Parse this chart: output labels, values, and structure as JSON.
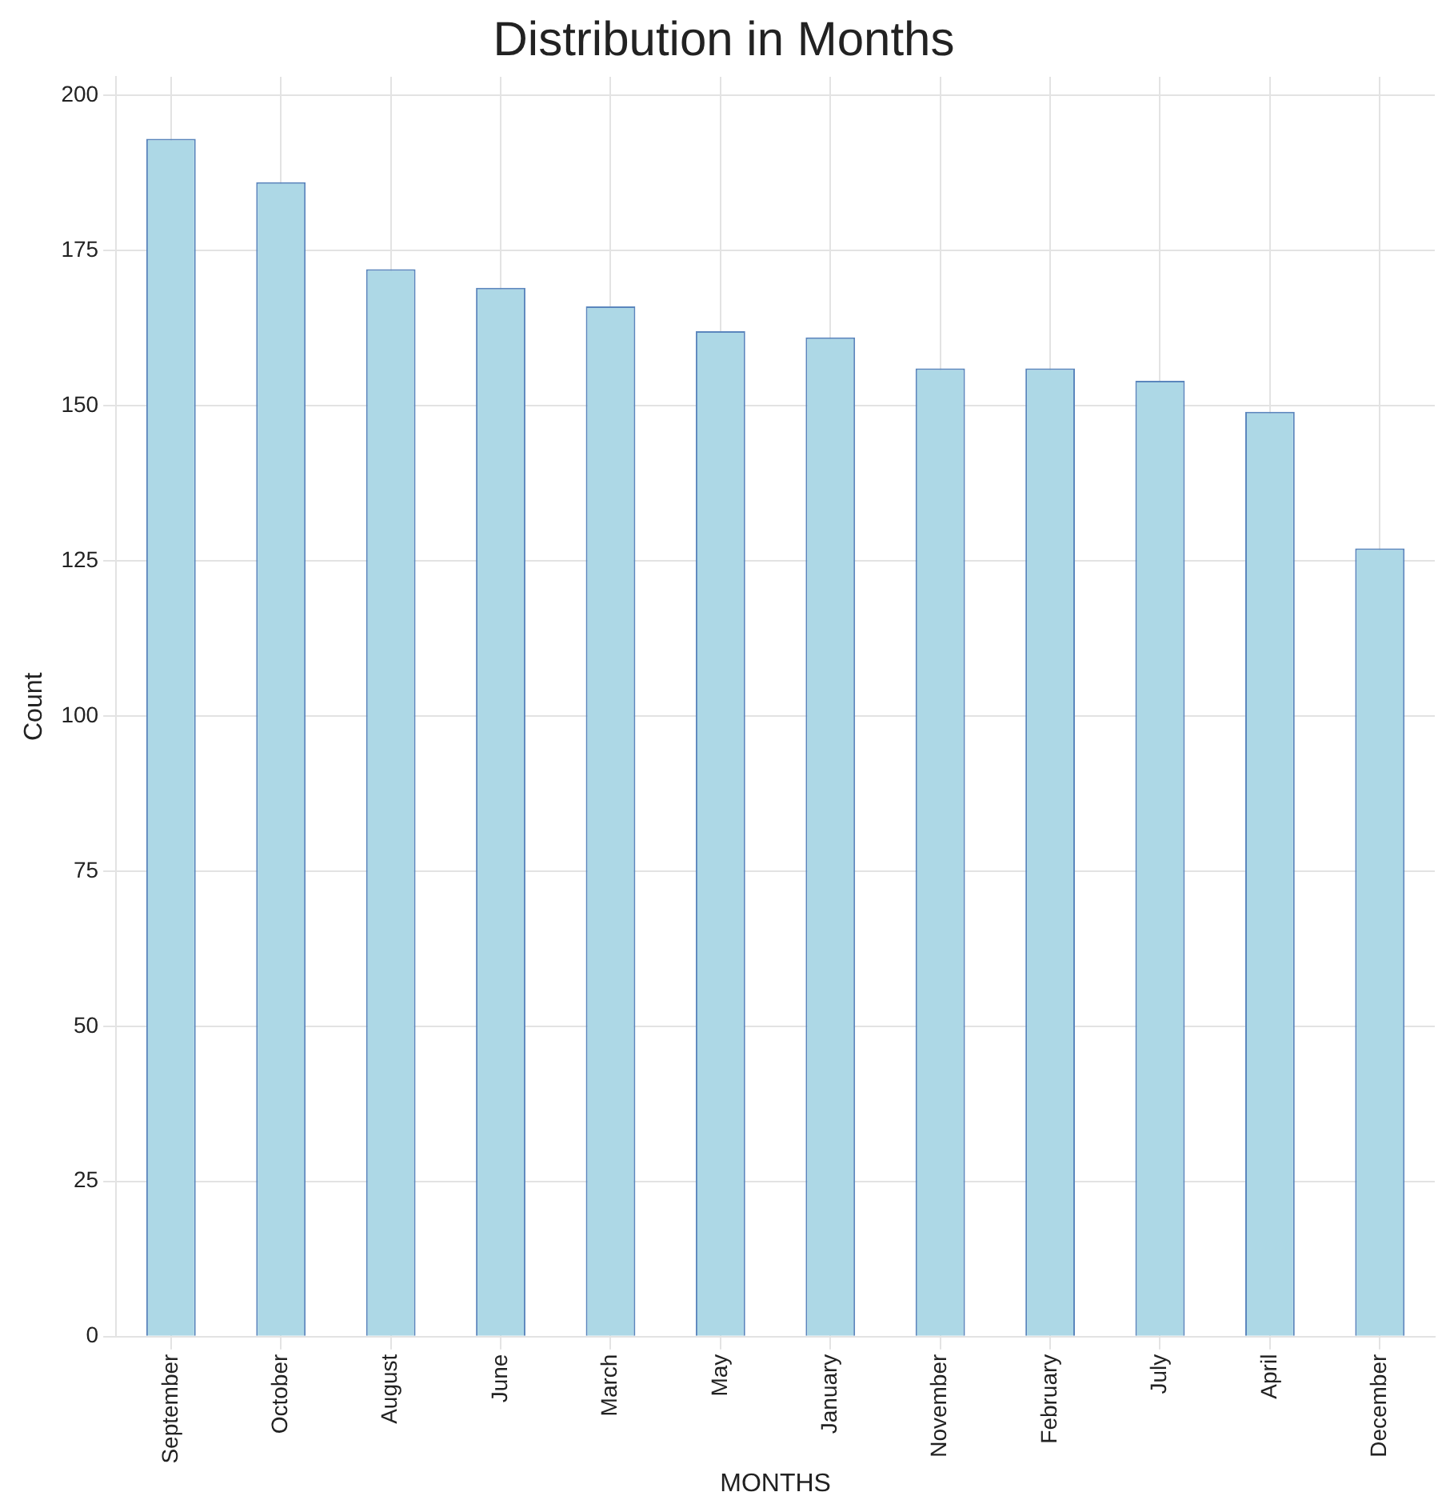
{
  "chart_data": {
    "type": "bar",
    "title": "Distribution in Months",
    "xlabel": "MONTHS",
    "ylabel": "Count",
    "categories": [
      "September",
      "October",
      "August",
      "June",
      "March",
      "May",
      "January",
      "November",
      "February",
      "July",
      "April",
      "December"
    ],
    "values": [
      193,
      186,
      172,
      169,
      166,
      162,
      161,
      156,
      156,
      154,
      149,
      127
    ],
    "color": "#add8e6",
    "ylim": [
      0,
      203
    ],
    "yticks": [
      0,
      25,
      50,
      75,
      100,
      125,
      150,
      175,
      200
    ],
    "grid": true
  }
}
